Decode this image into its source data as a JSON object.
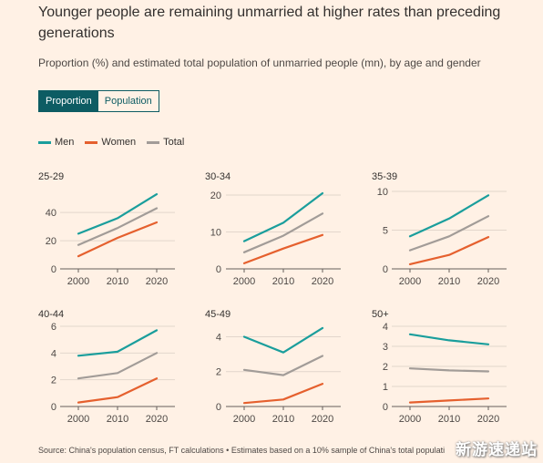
{
  "title": "Younger people are remaining unmarried at higher rates than preceding generations",
  "subtitle": "Proportion (%) and estimated total population of unmarried people (mn), by age and gender",
  "toggle": {
    "options": [
      "Proportion",
      "Population"
    ],
    "active": "Proportion"
  },
  "colors": {
    "men": "#1a9e9c",
    "women": "#e5602e",
    "total": "#a29c98",
    "active_toggle": "#0d5c63"
  },
  "legend": [
    {
      "label": "Men",
      "color": "#1a9e9c"
    },
    {
      "label": "Women",
      "color": "#e5602e"
    },
    {
      "label": "Total",
      "color": "#a29c98"
    }
  ],
  "source": "Source: China's population census, FT calculations • Estimates based on a 10% sample of China's total populati",
  "watermark": "新游速递站",
  "chart_data": [
    {
      "type": "line",
      "title": "25-29",
      "x": [
        2000,
        2010,
        2020
      ],
      "ylim": [
        0,
        55
      ],
      "yticks": [
        0,
        20,
        40
      ],
      "series": [
        {
          "name": "Men",
          "values": [
            25,
            36,
            53
          ]
        },
        {
          "name": "Women",
          "values": [
            9,
            22,
            33
          ]
        },
        {
          "name": "Total",
          "values": [
            17,
            29,
            43
          ]
        }
      ]
    },
    {
      "type": "line",
      "title": "30-34",
      "x": [
        2000,
        2010,
        2020
      ],
      "ylim": [
        0,
        21
      ],
      "yticks": [
        0,
        10,
        20
      ],
      "series": [
        {
          "name": "Men",
          "values": [
            7.5,
            12.5,
            20.5
          ]
        },
        {
          "name": "Women",
          "values": [
            1.5,
            5.5,
            9.2
          ]
        },
        {
          "name": "Total",
          "values": [
            4.5,
            9,
            15
          ]
        }
      ]
    },
    {
      "type": "line",
      "title": "35-39",
      "x": [
        2000,
        2010,
        2020
      ],
      "ylim": [
        0,
        10
      ],
      "yticks": [
        0,
        5,
        10
      ],
      "series": [
        {
          "name": "Men",
          "values": [
            4.2,
            6.5,
            9.5
          ]
        },
        {
          "name": "Women",
          "values": [
            0.6,
            1.8,
            4.1
          ]
        },
        {
          "name": "Total",
          "values": [
            2.4,
            4.2,
            6.8
          ]
        }
      ]
    },
    {
      "type": "line",
      "title": "40-44",
      "x": [
        2000,
        2010,
        2020
      ],
      "ylim": [
        0,
        6
      ],
      "yticks": [
        0,
        2,
        4,
        6
      ],
      "series": [
        {
          "name": "Men",
          "values": [
            3.8,
            4.1,
            5.7
          ]
        },
        {
          "name": "Women",
          "values": [
            0.3,
            0.7,
            2.1
          ]
        },
        {
          "name": "Total",
          "values": [
            2.1,
            2.5,
            4.0
          ]
        }
      ]
    },
    {
      "type": "line",
      "title": "45-49",
      "x": [
        2000,
        2010,
        2020
      ],
      "ylim": [
        0,
        4.6
      ],
      "yticks": [
        0,
        2,
        4
      ],
      "series": [
        {
          "name": "Men",
          "values": [
            4.0,
            3.1,
            4.5
          ]
        },
        {
          "name": "Women",
          "values": [
            0.2,
            0.4,
            1.3
          ]
        },
        {
          "name": "Total",
          "values": [
            2.1,
            1.8,
            2.9
          ]
        }
      ]
    },
    {
      "type": "line",
      "title": "50+",
      "x": [
        2000,
        2010,
        2020
      ],
      "ylim": [
        0,
        4
      ],
      "yticks": [
        0,
        1,
        2,
        3,
        4
      ],
      "series": [
        {
          "name": "Men",
          "values": [
            3.6,
            3.3,
            3.1
          ]
        },
        {
          "name": "Women",
          "values": [
            0.2,
            0.3,
            0.4
          ]
        },
        {
          "name": "Total",
          "values": [
            1.9,
            1.8,
            1.75
          ]
        }
      ]
    }
  ]
}
